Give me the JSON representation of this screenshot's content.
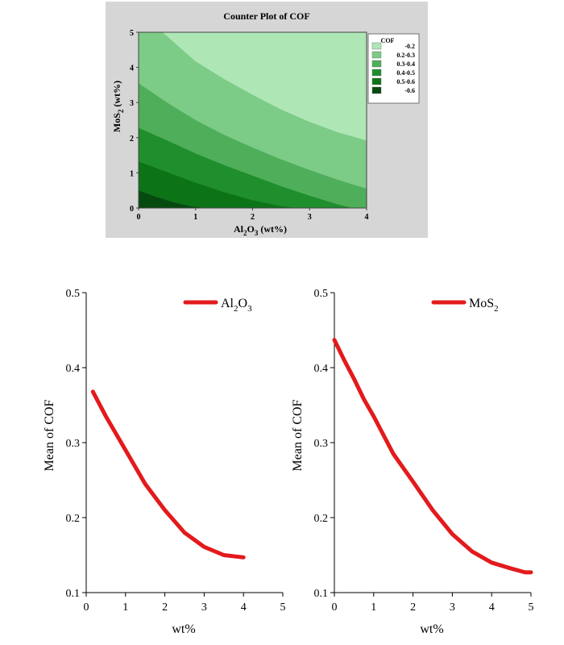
{
  "chart_data": [
    {
      "type": "contour",
      "title": "Counter Plot of COF",
      "xlabel": {
        "main": "Al",
        "sub1": "2",
        "mid": "O",
        "sub2": "3",
        "tail": " (wt%)"
      },
      "ylabel": {
        "main": "MoS",
        "sub": "2",
        "tail": " (wt%)"
      },
      "xlim": [
        0,
        4
      ],
      "ylim": [
        0,
        5
      ],
      "xticks": [
        "0",
        "1",
        "2",
        "3",
        "4"
      ],
      "yticks": [
        "0",
        "1",
        "2",
        "3",
        "4",
        "5"
      ],
      "legend": {
        "title": "COF",
        "position": "right",
        "entries": [
          {
            "label": "-0.2",
            "color": "#aee6b6"
          },
          {
            "label": "0.2-0.3",
            "color": "#7ccb86"
          },
          {
            "label": "0.3-0.4",
            "color": "#4fae5a"
          },
          {
            "label": "0.4-0.5",
            "color": "#1e8f2c"
          },
          {
            "label": "0.5-0.6",
            "color": "#0c7417"
          },
          {
            "label": "-0.6",
            "color": "#064a10"
          }
        ]
      },
      "contour_boundaries": [
        {
          "between": [
            "-0.2",
            "0.2-0.3"
          ],
          "x": [
            0.42,
            1.0,
            1.5,
            2.0,
            2.5,
            3.0,
            3.5,
            4.0
          ],
          "y": [
            5.0,
            4.17,
            3.67,
            3.22,
            2.8,
            2.45,
            2.15,
            1.92
          ]
        },
        {
          "between": [
            "0.2-0.3",
            "0.3-0.4"
          ],
          "x": [
            0.0,
            0.5,
            1.0,
            1.5,
            2.0,
            2.5,
            3.0,
            3.5,
            4.0
          ],
          "y": [
            3.55,
            3.0,
            2.5,
            2.08,
            1.72,
            1.38,
            1.08,
            0.8,
            0.55
          ]
        },
        {
          "between": [
            "0.3-0.4",
            "0.4-0.5"
          ],
          "x": [
            0.0,
            0.5,
            1.0,
            1.5,
            2.0,
            2.5,
            3.0,
            3.5,
            3.75
          ],
          "y": [
            2.28,
            1.92,
            1.55,
            1.22,
            0.92,
            0.62,
            0.35,
            0.1,
            0.0
          ]
        },
        {
          "between": [
            "0.4-0.5",
            "0.5-0.6"
          ],
          "x": [
            0.0,
            0.5,
            1.0,
            1.5,
            2.0,
            2.5,
            2.75
          ],
          "y": [
            1.32,
            1.02,
            0.72,
            0.45,
            0.22,
            0.05,
            0.0
          ]
        },
        {
          "between": [
            "0.5-0.6",
            "-0.6"
          ],
          "x": [
            0.0,
            0.3,
            0.6,
            0.9,
            1.15
          ],
          "y": [
            0.5,
            0.32,
            0.17,
            0.05,
            0.0
          ]
        }
      ]
    },
    {
      "type": "line",
      "xlabel": "wt%",
      "ylabel": "Mean of COF",
      "xlim": [
        0,
        5
      ],
      "ylim": [
        0.1,
        0.5
      ],
      "xticks": [
        "0",
        "1",
        "2",
        "3",
        "4",
        "5"
      ],
      "yticks": [
        "0.1",
        "0.2",
        "0.3",
        "0.4",
        "0.5"
      ],
      "color": "#e31a1c",
      "legend": {
        "position": "top-right",
        "main": "Al",
        "sub1": "2",
        "mid": "O",
        "sub2": "3"
      },
      "series": [
        {
          "name": "Al2O3",
          "x": [
            0.17,
            0.5,
            1.0,
            1.5,
            2.0,
            2.5,
            3.0,
            3.5,
            4.0
          ],
          "y": [
            0.368,
            0.335,
            0.29,
            0.245,
            0.21,
            0.18,
            0.161,
            0.15,
            0.147
          ]
        }
      ]
    },
    {
      "type": "line",
      "xlabel": "wt%",
      "ylabel": "Mean of COF",
      "xlim": [
        0,
        5
      ],
      "ylim": [
        0.1,
        0.5
      ],
      "xticks": [
        "0",
        "1",
        "2",
        "3",
        "4",
        "5"
      ],
      "yticks": [
        "0.1",
        "0.2",
        "0.3",
        "0.4",
        "0.5"
      ],
      "color": "#e31a1c",
      "legend": {
        "position": "top-right",
        "main": "MoS",
        "sub1": "2"
      },
      "series": [
        {
          "name": "MoS2",
          "x": [
            0.0,
            0.25,
            0.5,
            0.75,
            1.0,
            1.5,
            2.0,
            2.5,
            3.0,
            3.5,
            4.0,
            4.5,
            4.85,
            5.0
          ],
          "y": [
            0.437,
            0.41,
            0.385,
            0.358,
            0.335,
            0.285,
            0.248,
            0.21,
            0.178,
            0.155,
            0.14,
            0.132,
            0.127,
            0.127
          ]
        }
      ]
    }
  ]
}
